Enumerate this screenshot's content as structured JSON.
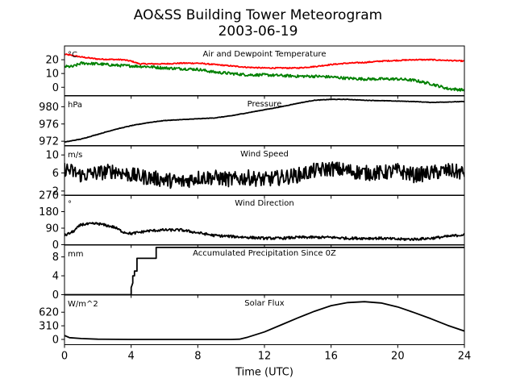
{
  "figure": {
    "title": "AO&SS Building Tower Meteorogram",
    "subtitle": "2003-06-19",
    "xlabel": "Time (UTC)"
  },
  "chart_data": {
    "type": "line",
    "x_ticks": [
      0,
      4,
      8,
      12,
      16,
      20,
      24
    ],
    "xlim": [
      0,
      24
    ],
    "panels": [
      {
        "title": "Air and Dewpoint Temperature",
        "unit": "°C",
        "ylim": [
          -6,
          30
        ],
        "yticks": [
          0,
          10,
          20
        ],
        "series": [
          {
            "color": "#ff0000",
            "noise": 0.4,
            "points": [
              [
                0,
                24
              ],
              [
                0.5,
                23
              ],
              [
                1,
                22
              ],
              [
                2,
                20.5
              ],
              [
                3.5,
                20
              ],
              [
                4,
                19
              ],
              [
                4.5,
                17
              ],
              [
                6,
                17
              ],
              [
                7,
                17.5
              ],
              [
                8,
                17.5
              ],
              [
                9,
                16.5
              ],
              [
                10,
                15.5
              ],
              [
                11,
                14.5
              ],
              [
                12,
                14
              ],
              [
                13,
                14
              ],
              [
                14,
                14
              ],
              [
                15,
                15
              ],
              [
                16,
                16.5
              ],
              [
                17,
                17.5
              ],
              [
                18,
                18
              ],
              [
                19,
                19
              ],
              [
                20,
                19.5
              ],
              [
                21,
                20
              ],
              [
                22,
                20
              ],
              [
                23,
                19.5
              ],
              [
                24,
                19
              ]
            ]
          },
          {
            "color": "#008000",
            "noise": 1.0,
            "points": [
              [
                0,
                15
              ],
              [
                0.5,
                15
              ],
              [
                1,
                17.5
              ],
              [
                2,
                17
              ],
              [
                3,
                16
              ],
              [
                4,
                15.5
              ],
              [
                5,
                15
              ],
              [
                6,
                14
              ],
              [
                7,
                13.5
              ],
              [
                8,
                13
              ],
              [
                9,
                11
              ],
              [
                10,
                10
              ],
              [
                11,
                9
              ],
              [
                12,
                9
              ],
              [
                13,
                8.5
              ],
              [
                14,
                8
              ],
              [
                15,
                8
              ],
              [
                16,
                7.5
              ],
              [
                17,
                6.5
              ],
              [
                18,
                6
              ],
              [
                19,
                6
              ],
              [
                20,
                6
              ],
              [
                21,
                5
              ],
              [
                22,
                2.5
              ],
              [
                23,
                -1
              ],
              [
                24,
                -2
              ]
            ]
          }
        ]
      },
      {
        "title": "Pressure",
        "unit": "hPa",
        "ylim": [
          971,
          982.5
        ],
        "yticks": [
          972,
          976,
          980
        ],
        "series": [
          {
            "color": "#000000",
            "noise": 0.05,
            "points": [
              [
                0,
                971.8
              ],
              [
                1,
                972.5
              ],
              [
                2,
                973.6
              ],
              [
                3,
                974.7
              ],
              [
                4,
                975.6
              ],
              [
                5,
                976.3
              ],
              [
                6,
                976.8
              ],
              [
                7,
                977
              ],
              [
                8,
                977.2
              ],
              [
                9,
                977.4
              ],
              [
                10,
                977.9
              ],
              [
                11,
                978.6
              ],
              [
                12,
                979.3
              ],
              [
                13,
                980
              ],
              [
                14,
                980.8
              ],
              [
                15,
                981.5
              ],
              [
                16,
                981.7
              ],
              [
                17,
                981.7
              ],
              [
                18,
                981.5
              ],
              [
                19,
                981.4
              ],
              [
                20,
                981.3
              ],
              [
                21,
                981.2
              ],
              [
                22,
                981
              ],
              [
                23,
                981.1
              ],
              [
                24,
                981.2
              ]
            ]
          }
        ]
      },
      {
        "title": "Wind Speed",
        "unit": "m/s",
        "ylim": [
          1,
          12
        ],
        "yticks": [
          2,
          6,
          10
        ],
        "series": [
          {
            "color": "#000000",
            "noise": 1.7,
            "points": [
              [
                0,
                7
              ],
              [
                1,
                5.5
              ],
              [
                2,
                6
              ],
              [
                3,
                6.5
              ],
              [
                4,
                5.5
              ],
              [
                5,
                5
              ],
              [
                6,
                4.5
              ],
              [
                7,
                4
              ],
              [
                8,
                5
              ],
              [
                9,
                5
              ],
              [
                10,
                4.5
              ],
              [
                11,
                5
              ],
              [
                12,
                4.5
              ],
              [
                13,
                5
              ],
              [
                14,
                5.5
              ],
              [
                15,
                6.5
              ],
              [
                16,
                7
              ],
              [
                17,
                6.5
              ],
              [
                18,
                6
              ],
              [
                19,
                6
              ],
              [
                20,
                6.5
              ],
              [
                21,
                5.5
              ],
              [
                22,
                6
              ],
              [
                23,
                6.5
              ],
              [
                24,
                6
              ]
            ]
          }
        ]
      },
      {
        "title": "Wind Direction",
        "unit": "°",
        "ylim": [
          0,
          270
        ],
        "yticks": [
          0,
          90,
          180,
          270
        ],
        "series": [
          {
            "color": "#000000",
            "noise": 7,
            "points": [
              [
                0,
                50
              ],
              [
                0.5,
                70
              ],
              [
                1,
                110
              ],
              [
                2,
                115
              ],
              [
                3,
                95
              ],
              [
                3.5,
                70
              ],
              [
                4,
                60
              ],
              [
                5,
                75
              ],
              [
                6,
                80
              ],
              [
                7,
                80
              ],
              [
                8,
                65
              ],
              [
                9,
                50
              ],
              [
                10,
                45
              ],
              [
                11,
                40
              ],
              [
                12,
                35
              ],
              [
                13,
                35
              ],
              [
                14,
                40
              ],
              [
                15,
                40
              ],
              [
                16,
                40
              ],
              [
                17,
                35
              ],
              [
                18,
                35
              ],
              [
                19,
                35
              ],
              [
                20,
                30
              ],
              [
                21,
                30
              ],
              [
                22,
                35
              ],
              [
                23,
                45
              ],
              [
                24,
                55
              ]
            ]
          }
        ]
      },
      {
        "title": "Accumulated Precipitation Since 0Z",
        "unit": "mm",
        "ylim": [
          0,
          10.5
        ],
        "yticks": [
          0,
          4,
          8
        ],
        "series": [
          {
            "color": "#000000",
            "noise": 0,
            "points": [
              [
                0,
                0
              ],
              [
                4.0,
                0
              ],
              [
                4.0,
                1.5
              ],
              [
                4.1,
                2.5
              ],
              [
                4.1,
                4
              ],
              [
                4.2,
                4
              ],
              [
                4.2,
                5
              ],
              [
                4.35,
                5
              ],
              [
                4.35,
                7.7
              ],
              [
                5.5,
                7.7
              ],
              [
                5.5,
                10
              ],
              [
                24,
                10
              ]
            ]
          }
        ]
      },
      {
        "title": "Solar Flux",
        "unit": "W/m^2",
        "ylim": [
          -120,
          1010
        ],
        "yticks": [
          0,
          310,
          620
        ],
        "series": [
          {
            "color": "#000000",
            "noise": 0,
            "points": [
              [
                0,
                90
              ],
              [
                0.3,
                40
              ],
              [
                1,
                20
              ],
              [
                2,
                5
              ],
              [
                4,
                0
              ],
              [
                6,
                0
              ],
              [
                8,
                0
              ],
              [
                10,
                0
              ],
              [
                10.5,
                5
              ],
              [
                11,
                50
              ],
              [
                12,
                170
              ],
              [
                13,
                330
              ],
              [
                14,
                490
              ],
              [
                15,
                640
              ],
              [
                16,
                770
              ],
              [
                17,
                840
              ],
              [
                18,
                860
              ],
              [
                19,
                830
              ],
              [
                20,
                740
              ],
              [
                21,
                610
              ],
              [
                22,
                470
              ],
              [
                23,
                320
              ],
              [
                24,
                190
              ]
            ]
          }
        ]
      }
    ]
  }
}
